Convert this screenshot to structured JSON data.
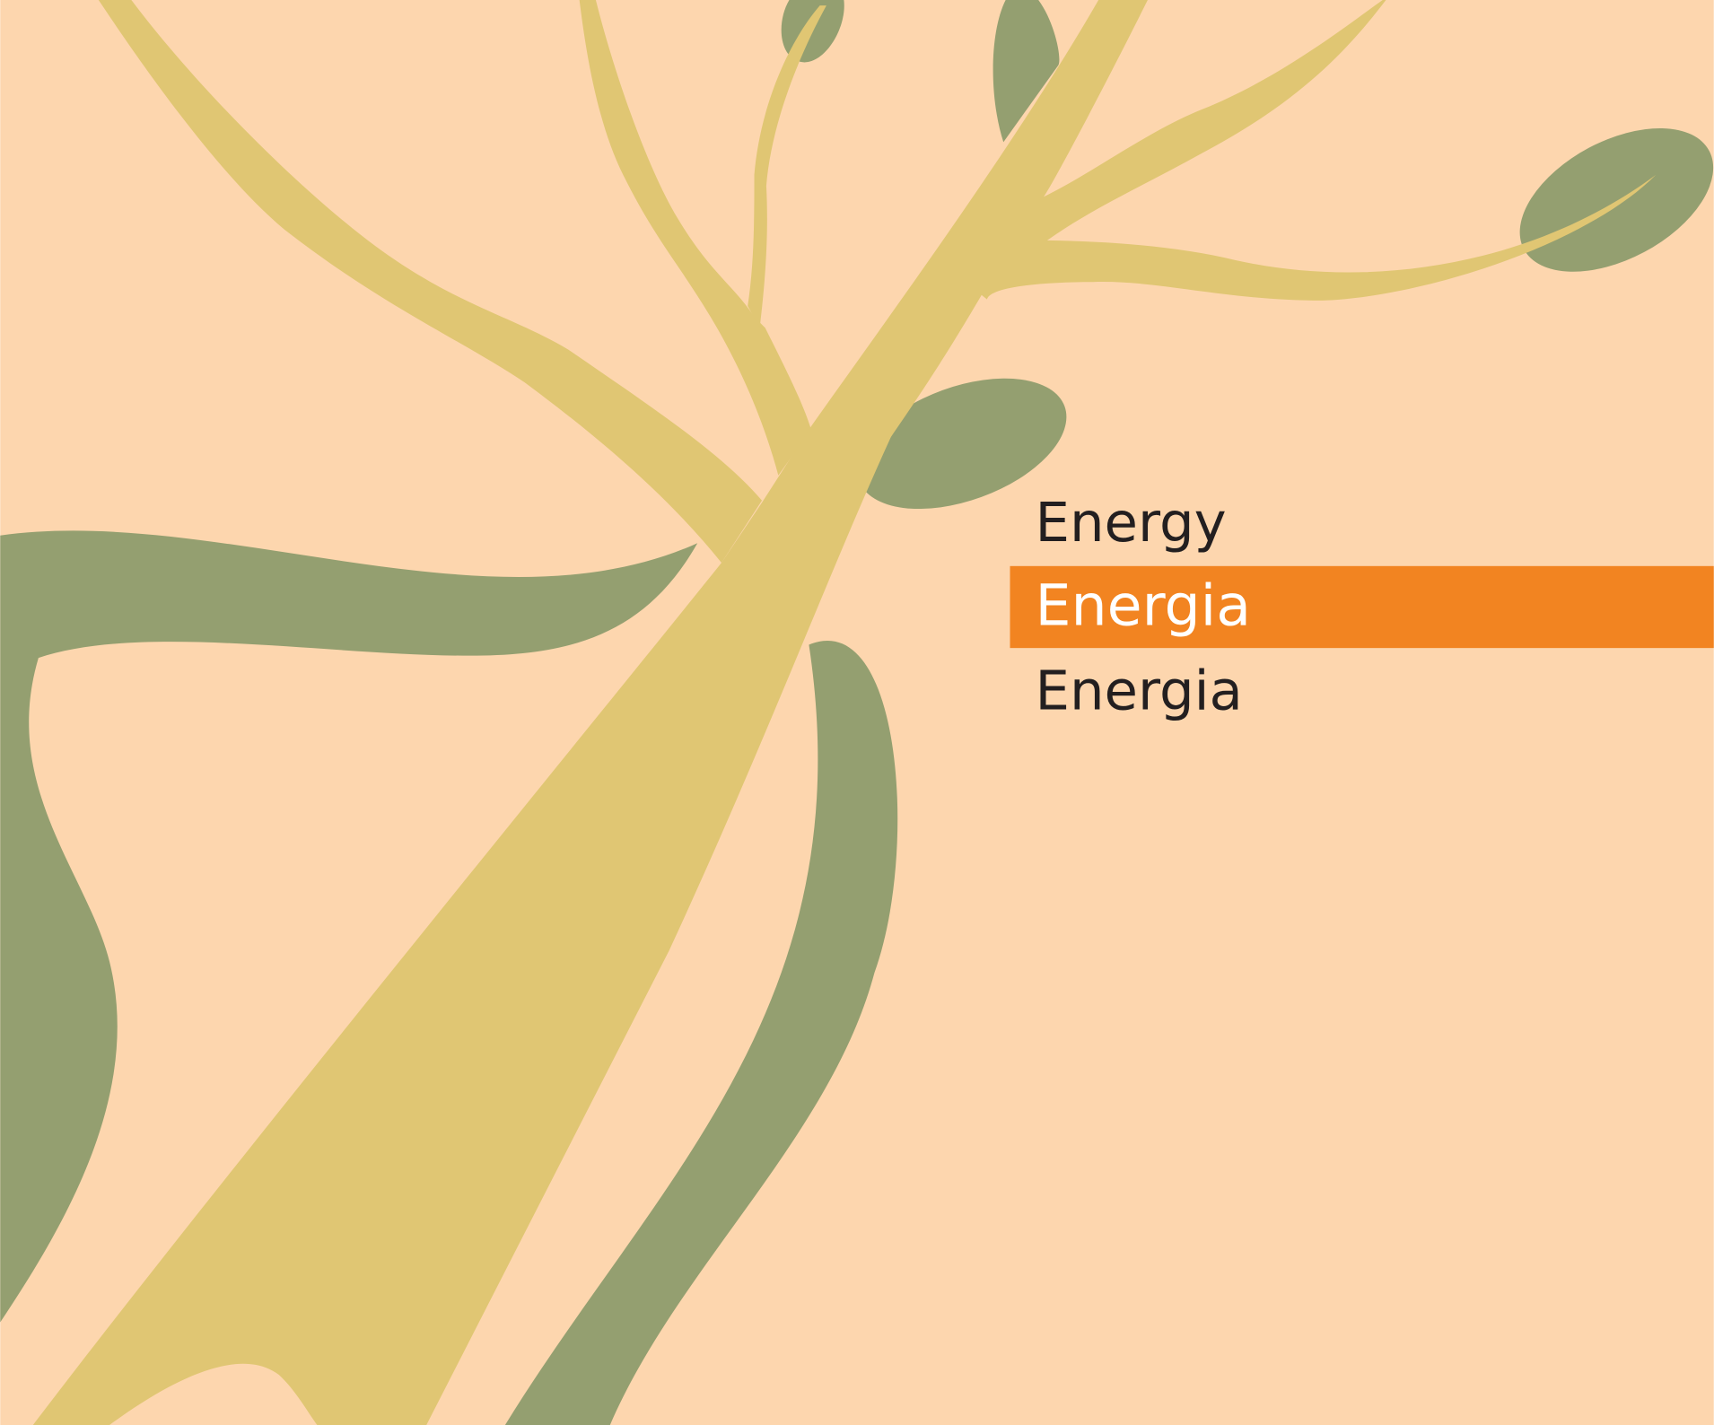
{
  "labels": [
    "Energy",
    "Energia",
    "Energia"
  ]
}
